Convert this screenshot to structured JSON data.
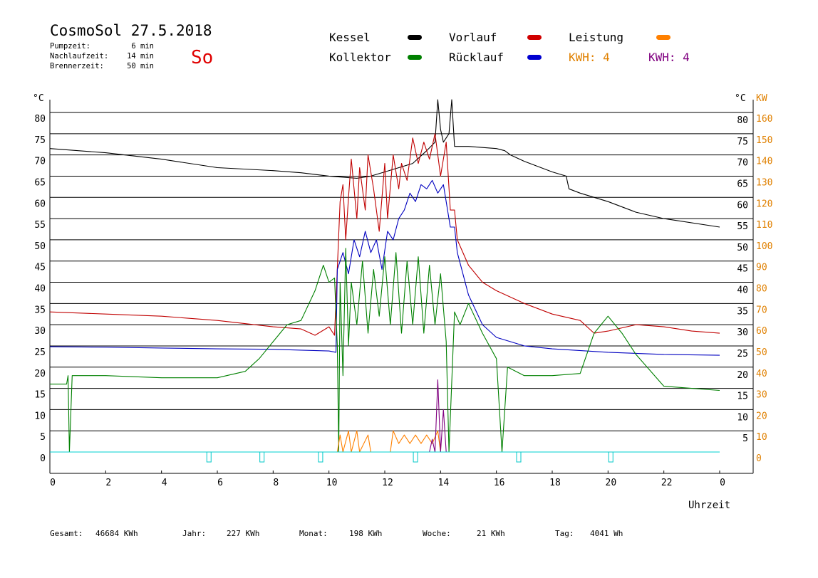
{
  "header": {
    "title": "CosmoSol 27.5.2018",
    "weekday": "So",
    "info": [
      {
        "label": "Pumpzeit:",
        "value": "6 min"
      },
      {
        "label": "Nachlaufzeit:",
        "value": "14 min"
      },
      {
        "label": "Brennerzeit:",
        "value": "50 min"
      }
    ]
  },
  "legend": {
    "items": [
      {
        "label": "Kessel",
        "color": "#000000"
      },
      {
        "label": "Kollektor",
        "color": "#008000"
      },
      {
        "label": "Vorlauf",
        "color": "#d00000"
      },
      {
        "label": "Rücklauf",
        "color": "#0000d0"
      },
      {
        "label": "Leistung",
        "color": "#ff8000"
      }
    ],
    "kwh": [
      {
        "label": "KWH: 4",
        "color": "#e08000"
      },
      {
        "label": "KWH: 4",
        "color": "#800080"
      }
    ]
  },
  "footer": [
    {
      "label": "Gesamt:",
      "value": "46684 KWh"
    },
    {
      "label": "Jahr:",
      "value": "227 KWh"
    },
    {
      "label": "Monat:",
      "value": "198 KWh"
    },
    {
      "label": "Woche:",
      "value": "21 KWh"
    },
    {
      "label": "Tag:",
      "value": "4041 Wh"
    }
  ],
  "chart_data": {
    "type": "line",
    "xlabel": "Uhrzeit",
    "ylabel_left": "°C",
    "ylabel_right": "°C",
    "ylabel_right2": "KW",
    "xlim": [
      0,
      24
    ],
    "ylim": [
      0,
      80
    ],
    "ylim_kw": [
      0,
      160
    ],
    "x_ticks": [
      "0",
      "2",
      "4",
      "6",
      "8",
      "10",
      "12",
      "14",
      "16",
      "18",
      "20",
      "22",
      "0"
    ],
    "y_ticks": [
      0,
      5,
      10,
      15,
      20,
      25,
      30,
      35,
      40,
      45,
      50,
      55,
      60,
      65,
      70,
      75,
      80
    ],
    "kw_ticks": [
      0,
      10,
      20,
      30,
      40,
      50,
      60,
      70,
      80,
      90,
      100,
      110,
      120,
      130,
      140,
      150,
      160
    ],
    "grid": true,
    "series": [
      {
        "name": "Kessel",
        "color": "#000000",
        "points": [
          [
            0,
            71.5
          ],
          [
            2,
            70.5
          ],
          [
            4,
            69
          ],
          [
            6,
            67
          ],
          [
            8,
            66.3
          ],
          [
            9,
            65.8
          ],
          [
            10,
            65
          ],
          [
            11,
            64.5
          ],
          [
            11.5,
            65
          ],
          [
            12,
            66
          ],
          [
            13,
            68
          ],
          [
            13.5,
            71
          ],
          [
            13.8,
            73
          ],
          [
            13.9,
            83
          ],
          [
            14,
            76
          ],
          [
            14.1,
            73
          ],
          [
            14.3,
            75
          ],
          [
            14.4,
            83
          ],
          [
            14.5,
            72
          ],
          [
            15,
            72
          ],
          [
            16,
            71.5
          ],
          [
            16.3,
            71
          ],
          [
            16.5,
            70
          ],
          [
            17,
            68.5
          ],
          [
            18,
            66
          ],
          [
            18.5,
            65
          ],
          [
            18.6,
            62
          ],
          [
            19,
            61
          ],
          [
            20,
            59
          ],
          [
            21,
            56.5
          ],
          [
            22,
            55
          ],
          [
            24,
            53
          ]
        ]
      },
      {
        "name": "Vorlauf",
        "color": "#c00000",
        "points": [
          [
            0,
            33
          ],
          [
            2,
            32.5
          ],
          [
            4,
            32
          ],
          [
            6,
            31
          ],
          [
            8,
            29.5
          ],
          [
            9,
            29
          ],
          [
            9.5,
            27.5
          ],
          [
            10,
            29.5
          ],
          [
            10.2,
            27.5
          ],
          [
            10.4,
            59
          ],
          [
            10.5,
            63
          ],
          [
            10.6,
            50
          ],
          [
            10.7,
            60
          ],
          [
            10.8,
            69
          ],
          [
            11,
            55
          ],
          [
            11.1,
            67
          ],
          [
            11.3,
            57
          ],
          [
            11.4,
            70
          ],
          [
            11.6,
            62
          ],
          [
            11.8,
            52
          ],
          [
            12,
            68
          ],
          [
            12.1,
            55
          ],
          [
            12.3,
            70
          ],
          [
            12.5,
            62
          ],
          [
            12.6,
            68
          ],
          [
            12.8,
            64
          ],
          [
            13,
            74
          ],
          [
            13.2,
            68
          ],
          [
            13.4,
            73
          ],
          [
            13.6,
            69
          ],
          [
            13.8,
            75
          ],
          [
            14,
            65
          ],
          [
            14.2,
            73
          ],
          [
            14.35,
            57
          ],
          [
            14.5,
            57
          ],
          [
            14.6,
            50
          ],
          [
            15,
            44
          ],
          [
            15.5,
            40
          ],
          [
            16,
            38
          ],
          [
            17,
            35
          ],
          [
            18,
            32.5
          ],
          [
            19,
            31
          ],
          [
            19.5,
            28
          ],
          [
            20,
            28.5
          ],
          [
            21,
            30
          ],
          [
            22,
            29.5
          ],
          [
            23,
            28.5
          ],
          [
            24,
            28
          ]
        ]
      },
      {
        "name": "Rücklauf",
        "color": "#0000c0",
        "points": [
          [
            0,
            24.8
          ],
          [
            2,
            24.7
          ],
          [
            4,
            24.5
          ],
          [
            6,
            24.3
          ],
          [
            8,
            24.2
          ],
          [
            9,
            24
          ],
          [
            10,
            23.8
          ],
          [
            10.25,
            23.5
          ],
          [
            10.3,
            43
          ],
          [
            10.5,
            47
          ],
          [
            10.7,
            42
          ],
          [
            10.9,
            50
          ],
          [
            11.1,
            46
          ],
          [
            11.3,
            52
          ],
          [
            11.5,
            47
          ],
          [
            11.7,
            50
          ],
          [
            11.9,
            43
          ],
          [
            12.1,
            52
          ],
          [
            12.3,
            50
          ],
          [
            12.5,
            55
          ],
          [
            12.7,
            57
          ],
          [
            12.9,
            61
          ],
          [
            13.1,
            59
          ],
          [
            13.3,
            63
          ],
          [
            13.5,
            62
          ],
          [
            13.7,
            64
          ],
          [
            13.9,
            61
          ],
          [
            14.1,
            63
          ],
          [
            14.35,
            53
          ],
          [
            14.5,
            53
          ],
          [
            14.6,
            47
          ],
          [
            15,
            37
          ],
          [
            15.5,
            30
          ],
          [
            16,
            27
          ],
          [
            17,
            25
          ],
          [
            18,
            24.3
          ],
          [
            20,
            23.5
          ],
          [
            22,
            23
          ],
          [
            24,
            22.8
          ]
        ]
      },
      {
        "name": "Kollektor",
        "color": "#008000",
        "points": [
          [
            0,
            16
          ],
          [
            0.6,
            16
          ],
          [
            0.65,
            18
          ],
          [
            0.7,
            0
          ],
          [
            0.8,
            18
          ],
          [
            2,
            18
          ],
          [
            4,
            17.5
          ],
          [
            6,
            17.5
          ],
          [
            7,
            19
          ],
          [
            7.5,
            22
          ],
          [
            8,
            26
          ],
          [
            8.5,
            30
          ],
          [
            9,
            31
          ],
          [
            9.5,
            38
          ],
          [
            9.8,
            44
          ],
          [
            10,
            40
          ],
          [
            10.2,
            41
          ],
          [
            10.3,
            25
          ],
          [
            10.35,
            0
          ],
          [
            10.4,
            40
          ],
          [
            10.5,
            18
          ],
          [
            10.6,
            48
          ],
          [
            10.7,
            25
          ],
          [
            10.8,
            40
          ],
          [
            11,
            30
          ],
          [
            11.2,
            45
          ],
          [
            11.4,
            28
          ],
          [
            11.6,
            43
          ],
          [
            11.8,
            32
          ],
          [
            12,
            46
          ],
          [
            12.2,
            30
          ],
          [
            12.4,
            47
          ],
          [
            12.6,
            28
          ],
          [
            12.8,
            45
          ],
          [
            13,
            30
          ],
          [
            13.2,
            46
          ],
          [
            13.4,
            28
          ],
          [
            13.6,
            44
          ],
          [
            13.8,
            30
          ],
          [
            14,
            42
          ],
          [
            14.2,
            26
          ],
          [
            14.3,
            0
          ],
          [
            14.5,
            33
          ],
          [
            14.7,
            30
          ],
          [
            15,
            35
          ],
          [
            15.5,
            28
          ],
          [
            16,
            22
          ],
          [
            16.2,
            0
          ],
          [
            16.4,
            20
          ],
          [
            17,
            18
          ],
          [
            18,
            18
          ],
          [
            19,
            18.5
          ],
          [
            19.5,
            28
          ],
          [
            20,
            32
          ],
          [
            20.5,
            28
          ],
          [
            21,
            23
          ],
          [
            22,
            15.5
          ],
          [
            23,
            15
          ],
          [
            24,
            14.5
          ]
        ]
      },
      {
        "name": "Leistung",
        "color": "#ff8000",
        "points": [
          [
            0,
            0
          ],
          [
            10.3,
            0
          ],
          [
            10.4,
            4
          ],
          [
            10.5,
            0
          ],
          [
            10.7,
            5
          ],
          [
            10.8,
            0
          ],
          [
            11,
            5
          ],
          [
            11.1,
            0
          ],
          [
            11.4,
            4
          ],
          [
            11.5,
            0
          ],
          [
            12.2,
            0
          ],
          [
            12.3,
            5
          ],
          [
            12.5,
            2
          ],
          [
            12.7,
            4
          ],
          [
            12.9,
            2
          ],
          [
            13.1,
            4
          ],
          [
            13.3,
            2
          ],
          [
            13.5,
            4
          ],
          [
            13.7,
            2
          ],
          [
            13.9,
            5
          ],
          [
            14,
            0
          ],
          [
            24,
            0
          ]
        ]
      },
      {
        "name": "Leistung 2",
        "color": "#800080",
        "points": [
          [
            0,
            0
          ],
          [
            13.6,
            0
          ],
          [
            13.7,
            3
          ],
          [
            13.8,
            0
          ],
          [
            13.9,
            17
          ],
          [
            14,
            0
          ],
          [
            14.1,
            10
          ],
          [
            14.2,
            0
          ],
          [
            24,
            0
          ]
        ]
      },
      {
        "name": "Pumpe",
        "color": "#00d0d0",
        "points": [
          [
            0,
            0
          ],
          [
            24,
            0
          ]
        ]
      }
    ],
    "pump_markers": [
      5.7,
      7.6,
      9.7,
      13.1,
      16.8,
      20.1
    ]
  }
}
